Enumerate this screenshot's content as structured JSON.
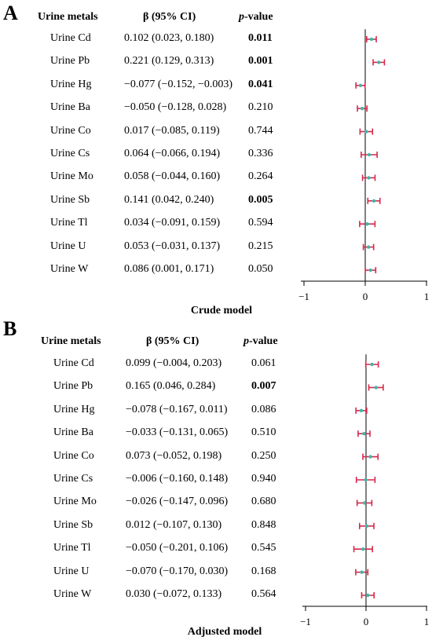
{
  "chart_data": [
    {
      "type": "forest",
      "panel": "A",
      "title": "Crude model",
      "headers": {
        "metal": "Urine metals",
        "beta": "β (95% CI)",
        "p_italic": "p",
        "p_rest": "-value"
      },
      "xticks": [
        -1,
        0,
        1
      ],
      "xlim": [
        -1,
        1
      ],
      "ci_color": "#d6284b",
      "point_color": "#3fb6a8",
      "rows": [
        {
          "metal": "Urine Cd",
          "beta_text": "0.102 (0.023, 0.180)",
          "p": "0.011",
          "sig": true,
          "beta": 0.102,
          "lo": 0.023,
          "hi": 0.18
        },
        {
          "metal": "Urine Pb",
          "beta_text": "0.221 (0.129, 0.313)",
          "p": "0.001",
          "sig": true,
          "beta": 0.221,
          "lo": 0.129,
          "hi": 0.313
        },
        {
          "metal": "Urine Hg",
          "beta_text": "−0.077 (−0.152, −0.003)",
          "p": "0.041",
          "sig": true,
          "beta": -0.077,
          "lo": -0.152,
          "hi": -0.003
        },
        {
          "metal": "Urine Ba",
          "beta_text": "−0.050 (−0.128, 0.028)",
          "p": "0.210",
          "sig": false,
          "beta": -0.05,
          "lo": -0.128,
          "hi": 0.028
        },
        {
          "metal": "Urine Co",
          "beta_text": "0.017 (−0.085, 0.119)",
          "p": "0.744",
          "sig": false,
          "beta": 0.017,
          "lo": -0.085,
          "hi": 0.119
        },
        {
          "metal": "Urine Cs",
          "beta_text": "0.064 (−0.066, 0.194)",
          "p": "0.336",
          "sig": false,
          "beta": 0.064,
          "lo": -0.066,
          "hi": 0.194
        },
        {
          "metal": "Urine Mo",
          "beta_text": "0.058 (−0.044, 0.160)",
          "p": "0.264",
          "sig": false,
          "beta": 0.058,
          "lo": -0.044,
          "hi": 0.16
        },
        {
          "metal": "Urine Sb",
          "beta_text": "0.141 (0.042, 0.240)",
          "p": "0.005",
          "sig": true,
          "beta": 0.141,
          "lo": 0.042,
          "hi": 0.24
        },
        {
          "metal": "Urine Tl",
          "beta_text": "0.034 (−0.091, 0.159)",
          "p": "0.594",
          "sig": false,
          "beta": 0.034,
          "lo": -0.091,
          "hi": 0.159
        },
        {
          "metal": "Urine U",
          "beta_text": "0.053 (−0.031, 0.137)",
          "p": "0.215",
          "sig": false,
          "beta": 0.053,
          "lo": -0.031,
          "hi": 0.137
        },
        {
          "metal": "Urine W",
          "beta_text": "0.086 (0.001, 0.171)",
          "p": "0.050",
          "sig": false,
          "beta": 0.086,
          "lo": 0.001,
          "hi": 0.171
        }
      ]
    },
    {
      "type": "forest",
      "panel": "B",
      "title": "Adjusted model",
      "headers": {
        "metal": "Urine metals",
        "beta": "β (95% CI)",
        "p_italic": "p",
        "p_rest": "-value"
      },
      "xticks": [
        -1,
        0,
        1
      ],
      "xlim": [
        -1,
        1
      ],
      "ci_color": "#d6284b",
      "point_color": "#3fb6a8",
      "rows": [
        {
          "metal": "Urine Cd",
          "beta_text": "0.099 (−0.004, 0.203)",
          "p": "0.061",
          "sig": false,
          "beta": 0.099,
          "lo": -0.004,
          "hi": 0.203
        },
        {
          "metal": "Urine Pb",
          "beta_text": "0.165 (0.046, 0.284)",
          "p": "0.007",
          "sig": true,
          "beta": 0.165,
          "lo": 0.046,
          "hi": 0.284
        },
        {
          "metal": "Urine Hg",
          "beta_text": "−0.078 (−0.167, 0.011)",
          "p": "0.086",
          "sig": false,
          "beta": -0.078,
          "lo": -0.167,
          "hi": 0.011
        },
        {
          "metal": "Urine Ba",
          "beta_text": "−0.033 (−0.131, 0.065)",
          "p": "0.510",
          "sig": false,
          "beta": -0.033,
          "lo": -0.131,
          "hi": 0.065
        },
        {
          "metal": "Urine Co",
          "beta_text": "0.073 (−0.052, 0.198)",
          "p": "0.250",
          "sig": false,
          "beta": 0.073,
          "lo": -0.052,
          "hi": 0.198
        },
        {
          "metal": "Urine Cs",
          "beta_text": "−0.006 (−0.160, 0.148)",
          "p": "0.940",
          "sig": false,
          "beta": -0.006,
          "lo": -0.16,
          "hi": 0.148
        },
        {
          "metal": "Urine Mo",
          "beta_text": "−0.026 (−0.147, 0.096)",
          "p": "0.680",
          "sig": false,
          "beta": -0.026,
          "lo": -0.147,
          "hi": 0.096
        },
        {
          "metal": "Urine Sb",
          "beta_text": "0.012 (−0.107, 0.130)",
          "p": "0.848",
          "sig": false,
          "beta": 0.012,
          "lo": -0.107,
          "hi": 0.13
        },
        {
          "metal": "Urine Tl",
          "beta_text": "−0.050 (−0.201, 0.106)",
          "p": "0.545",
          "sig": false,
          "beta": -0.05,
          "lo": -0.201,
          "hi": 0.106
        },
        {
          "metal": "Urine U",
          "beta_text": "−0.070 (−0.170, 0.030)",
          "p": "0.168",
          "sig": false,
          "beta": -0.07,
          "lo": -0.17,
          "hi": 0.03
        },
        {
          "metal": "Urine W",
          "beta_text": "0.030 (−0.072, 0.133)",
          "p": "0.564",
          "sig": false,
          "beta": 0.03,
          "lo": -0.072,
          "hi": 0.133
        }
      ]
    }
  ]
}
